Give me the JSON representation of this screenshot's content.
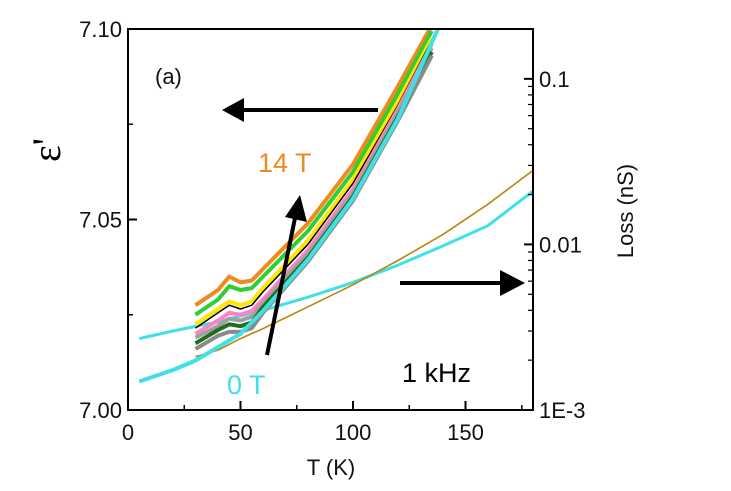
{
  "chart_data": {
    "type": "line",
    "panel_label": "(a)",
    "xlabel": "T (K)",
    "ylabel_left": "ε'",
    "ylabel_right": "Loss (nS)",
    "xlim": [
      0,
      180
    ],
    "ylim_left": [
      7.0,
      7.1
    ],
    "ylim_right": [
      0.001,
      0.2
    ],
    "right_axis_scale": "log",
    "x_ticks": [
      "0",
      "50",
      "100",
      "150"
    ],
    "y_left_ticks": [
      "7.00",
      "7.05",
      "7.10"
    ],
    "y_right_ticks": [
      "1E-3",
      "0.01",
      "0.1"
    ],
    "annotations": {
      "field_high": "14 T",
      "field_low": "0 T",
      "frequency": "1 kHz"
    },
    "colors": {
      "field_high": "#ee8a1e",
      "field_low": "#3fe0e6",
      "loss_line": "#b8860b"
    },
    "series": [
      {
        "color": "#ee8a1e",
        "x": [
          30,
          40,
          45,
          50,
          55,
          60,
          80,
          100,
          120,
          135
        ],
        "y": [
          7.0275,
          7.0315,
          7.035,
          7.0335,
          7.034,
          7.037,
          7.049,
          7.0645,
          7.085,
          7.101
        ]
      },
      {
        "color": "#32cd32",
        "x": [
          30,
          40,
          45,
          50,
          55,
          60,
          80,
          100,
          120,
          135
        ],
        "y": [
          7.025,
          7.029,
          7.0325,
          7.0315,
          7.032,
          7.035,
          7.047,
          7.0625,
          7.083,
          7.0995
        ]
      },
      {
        "color": "#ffe600",
        "x": [
          30,
          40,
          45,
          50,
          55,
          60,
          80,
          100,
          120,
          135
        ],
        "y": [
          7.0225,
          7.0265,
          7.0285,
          7.0275,
          7.0285,
          7.032,
          7.0445,
          7.0605,
          7.081,
          7.0975
        ]
      },
      {
        "color": "#000000",
        "x": [
          30,
          40,
          45,
          50,
          55,
          60,
          80,
          100,
          120,
          135
        ],
        "y": [
          7.0215,
          7.0255,
          7.0275,
          7.0265,
          7.0275,
          7.031,
          7.0435,
          7.0595,
          7.08,
          7.097
        ]
      },
      {
        "color": "#ff82c8",
        "x": [
          30,
          40,
          45,
          50,
          55,
          60,
          80,
          100,
          120,
          135
        ],
        "y": [
          7.02,
          7.0235,
          7.0255,
          7.025,
          7.026,
          7.029,
          7.042,
          7.058,
          7.079,
          7.096
        ]
      },
      {
        "color": "#a0a0a0",
        "x": [
          30,
          40,
          45,
          50,
          55,
          60,
          80,
          100,
          120,
          135
        ],
        "y": [
          7.019,
          7.022,
          7.024,
          7.0235,
          7.0245,
          7.028,
          7.041,
          7.057,
          7.078,
          7.095
        ]
      },
      {
        "color": "#1e6e1e",
        "x": [
          30,
          40,
          45,
          50,
          55,
          60,
          80,
          100,
          120,
          135
        ],
        "y": [
          7.0175,
          7.021,
          7.0225,
          7.022,
          7.023,
          7.027,
          7.04,
          7.056,
          7.077,
          7.094
        ]
      },
      {
        "color": "#8a8a8a",
        "x": [
          30,
          40,
          45,
          50,
          55,
          60,
          80,
          100,
          120,
          135
        ],
        "y": [
          7.016,
          7.0195,
          7.0205,
          7.0205,
          7.0215,
          7.0255,
          7.039,
          7.055,
          7.076,
          7.093
        ]
      },
      {
        "color": "#3fe0e6",
        "x": [
          5,
          10,
          20,
          30,
          40,
          50,
          60,
          80,
          100,
          120,
          140
        ],
        "y": [
          7.0075,
          7.0085,
          7.0105,
          7.013,
          7.0165,
          7.02,
          7.026,
          7.0395,
          7.0555,
          7.0765,
          7.103
        ]
      }
    ],
    "loss_series": [
      {
        "color": "#3fe0e6",
        "x": [
          5,
          10,
          20,
          30,
          40,
          50,
          60,
          80,
          100,
          120,
          140,
          160,
          180
        ],
        "y": [
          0.0027,
          0.0028,
          0.003,
          0.0032,
          0.0034,
          0.0037,
          0.004,
          0.0048,
          0.0059,
          0.0075,
          0.0098,
          0.013,
          0.021
        ]
      },
      {
        "color": "#b8860b",
        "x": [
          30,
          40,
          50,
          60,
          80,
          100,
          120,
          140,
          160,
          180
        ],
        "y": [
          0.0021,
          0.0023,
          0.0027,
          0.0031,
          0.0042,
          0.0057,
          0.008,
          0.0115,
          0.0175,
          0.028
        ]
      }
    ]
  }
}
